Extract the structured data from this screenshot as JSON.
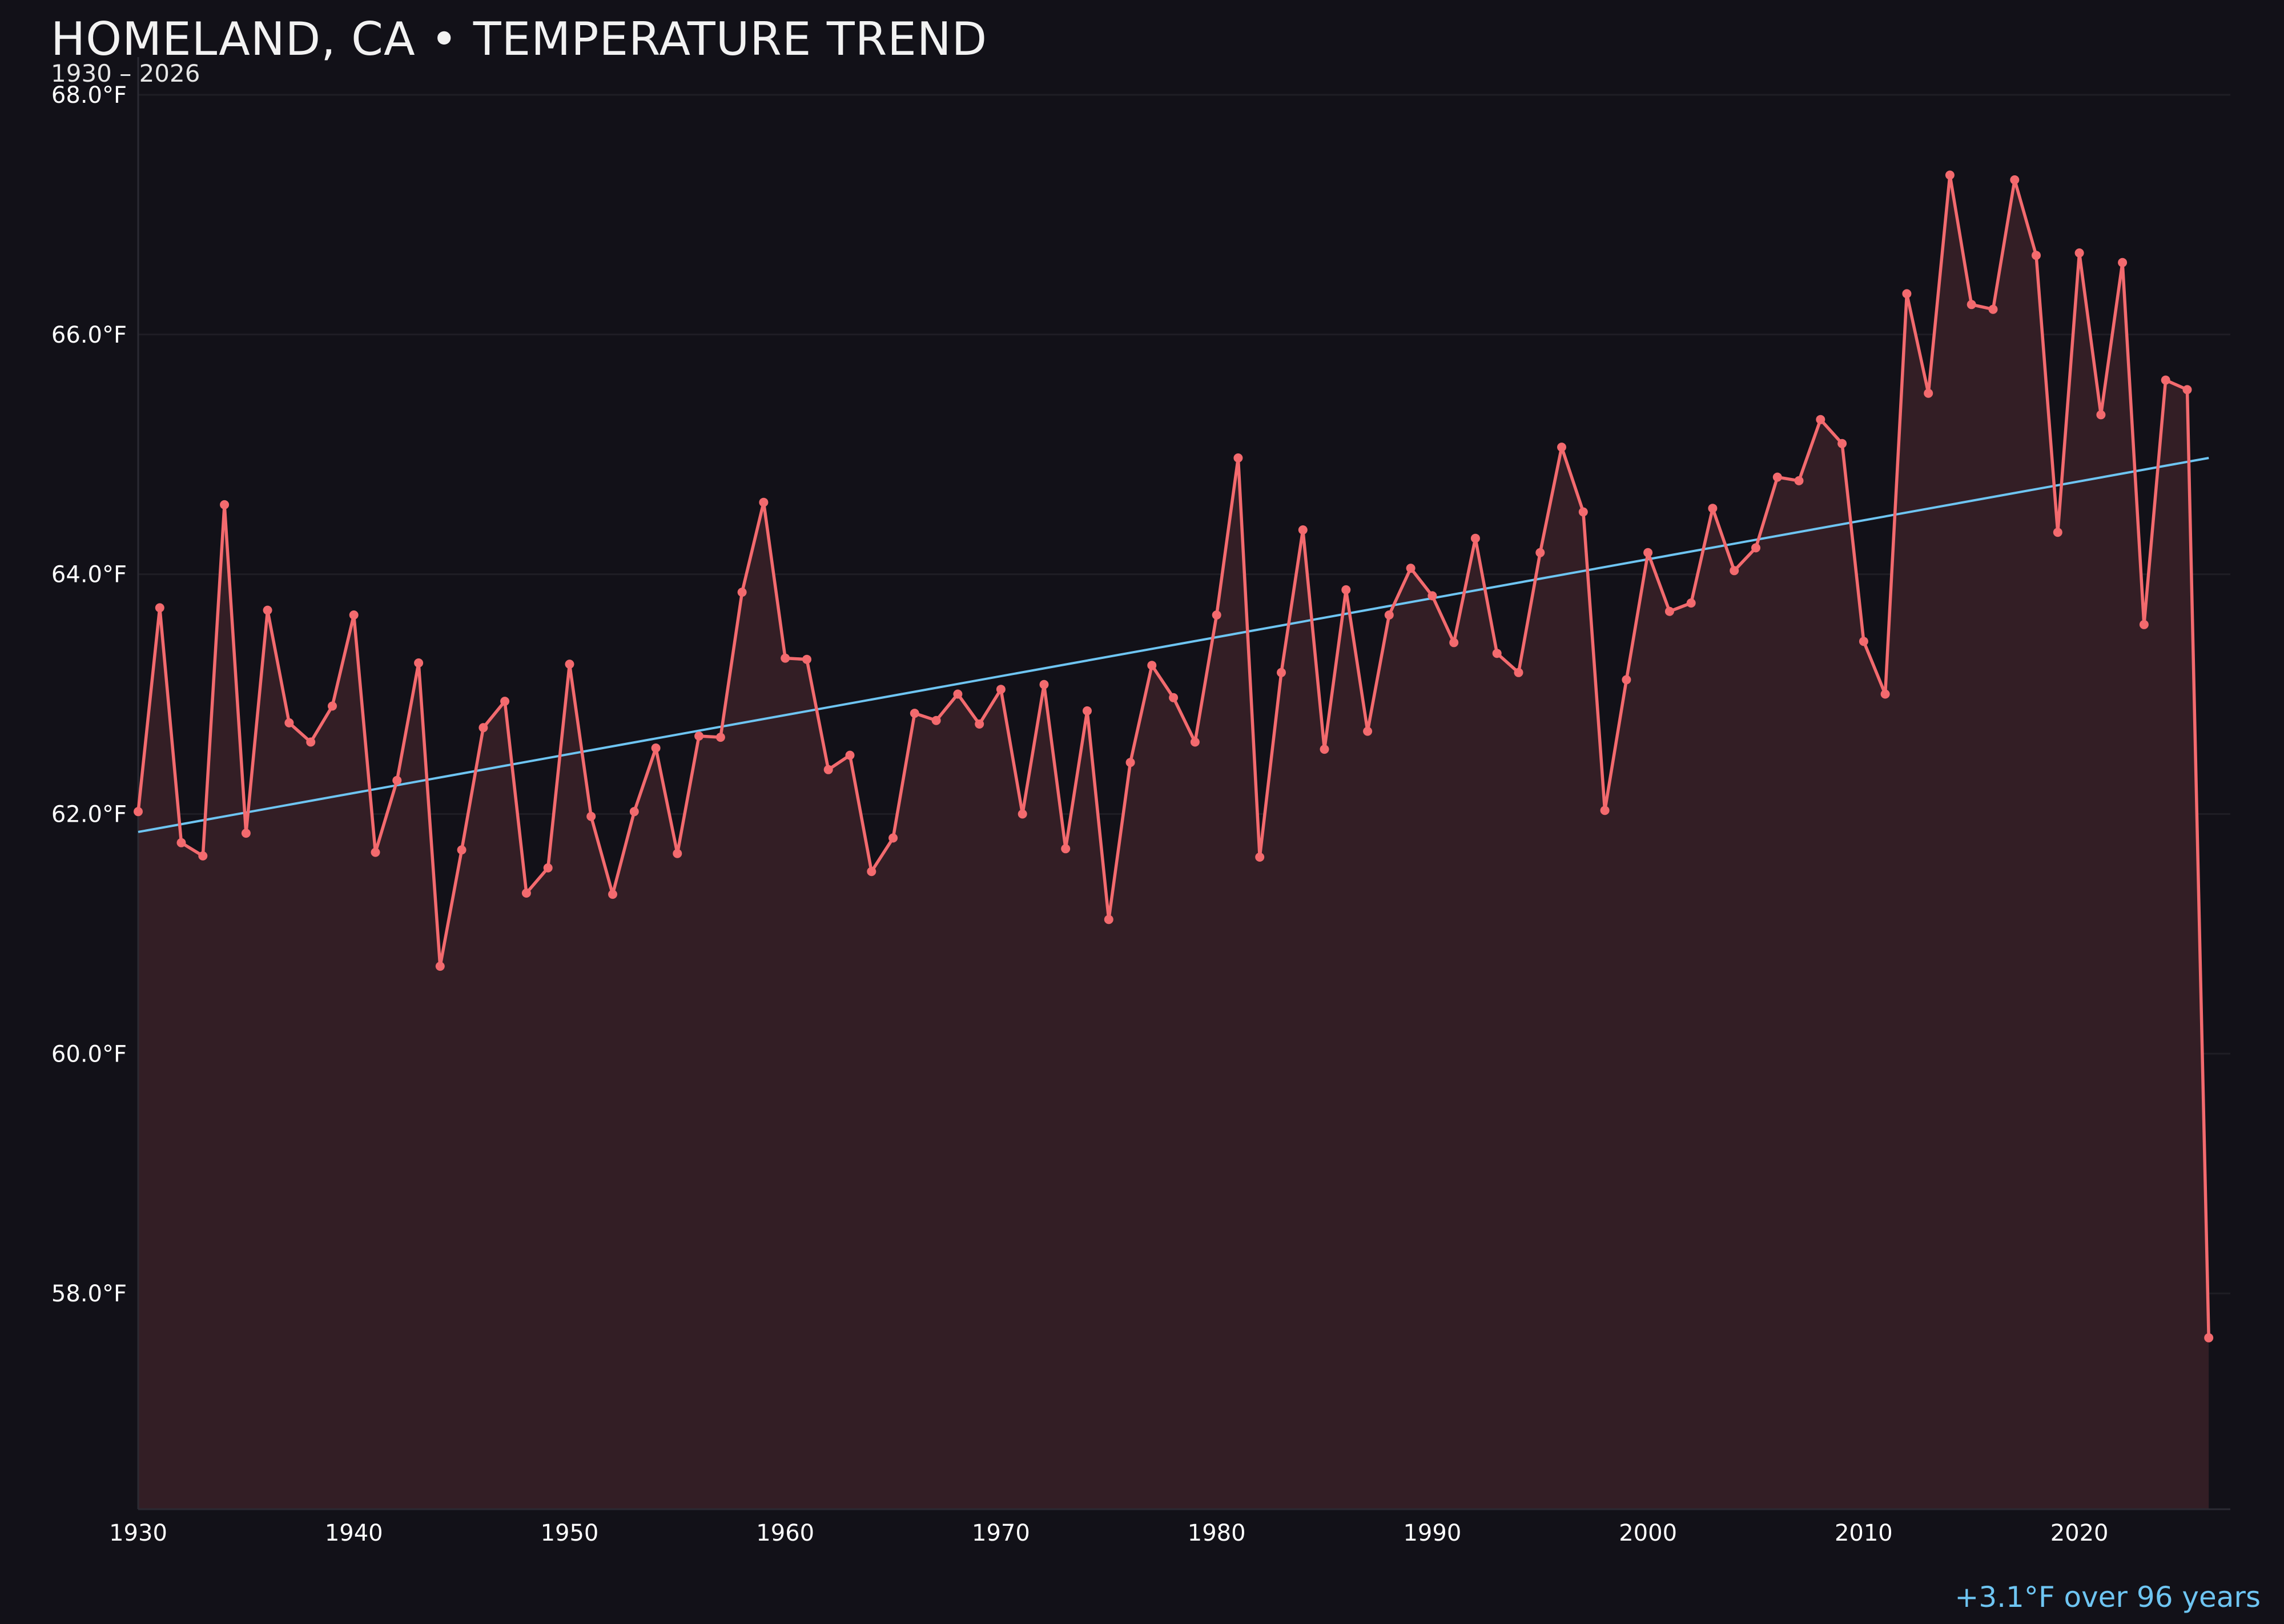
{
  "header": {
    "title": "HOMELAND, CA • TEMPERATURE TREND",
    "subtitle": "1930 – 2026"
  },
  "footnote": "+3.1°F over 96 years",
  "colors": {
    "background": "#121118",
    "series": "#f36a6e",
    "fill": "#331e25",
    "trend": "#6ec5f2",
    "grid": "#1f1e25",
    "text": "#ffffff"
  },
  "chart_data": {
    "type": "line",
    "title": "HOMELAND, CA • TEMPERATURE TREND",
    "subtitle": "1930 – 2026",
    "xlabel": "",
    "ylabel": "",
    "xlim": [
      1930,
      2027
    ],
    "ylim": [
      56.2,
      68.6
    ],
    "y_ticks": [
      58,
      60,
      62,
      64,
      66,
      68
    ],
    "y_tick_labels": [
      "58.0°F",
      "60.0°F",
      "62.0°F",
      "64.0°F",
      "66.0°F",
      "68.0°F"
    ],
    "x_ticks": [
      1930,
      1940,
      1950,
      1960,
      1970,
      1980,
      1990,
      2000,
      2010,
      2020
    ],
    "x_tick_labels": [
      "1930",
      "1940",
      "1950",
      "1960",
      "1970",
      "1980",
      "1990",
      "2000",
      "2010",
      "2020"
    ],
    "grid": "horizontal",
    "series": [
      {
        "x": [
          1930,
          1931,
          1932,
          1933,
          1934,
          1935,
          1936,
          1937,
          1938,
          1939,
          1940,
          1941,
          1942,
          1943,
          1944,
          1945,
          1946,
          1947,
          1948,
          1949,
          1950,
          1951,
          1952,
          1953,
          1954,
          1955,
          1956,
          1957,
          1958,
          1959,
          1960,
          1961,
          1962,
          1963,
          1964,
          1965,
          1966,
          1967,
          1968,
          1969,
          1970,
          1971,
          1972,
          1973,
          1974,
          1975,
          1976,
          1977,
          1978,
          1979,
          1980,
          1981,
          1982,
          1983,
          1984,
          1985,
          1986,
          1987,
          1988,
          1989,
          1990,
          1991,
          1992,
          1993,
          1994,
          1995,
          1996,
          1997,
          1998,
          1999,
          2000,
          2001,
          2002,
          2003,
          2004,
          2005,
          2006,
          2007,
          2008,
          2009,
          2010,
          2011,
          2012,
          2013,
          2014,
          2015,
          2016,
          2017,
          2018,
          2019,
          2020,
          2021,
          2022,
          2023,
          2024,
          2025,
          2026
        ],
        "values": [
          62.02,
          63.72,
          61.76,
          61.65,
          64.58,
          61.84,
          63.7,
          62.76,
          62.6,
          62.9,
          63.66,
          61.68,
          62.28,
          63.26,
          60.73,
          61.7,
          62.72,
          62.94,
          61.34,
          61.55,
          63.25,
          61.98,
          61.33,
          62.02,
          62.55,
          61.67,
          62.65,
          62.64,
          63.85,
          64.6,
          63.3,
          63.29,
          62.37,
          62.49,
          61.52,
          61.8,
          62.84,
          62.78,
          63.0,
          62.75,
          63.04,
          62.0,
          63.08,
          61.71,
          62.86,
          61.12,
          62.43,
          63.24,
          62.97,
          62.6,
          63.66,
          64.97,
          61.64,
          63.18,
          64.37,
          62.54,
          63.87,
          62.69,
          63.66,
          64.05,
          63.82,
          63.43,
          64.3,
          63.34,
          63.18,
          64.18,
          65.06,
          64.52,
          62.03,
          63.12,
          64.18,
          63.69,
          63.76,
          64.55,
          64.03,
          64.22,
          64.81,
          64.78,
          65.29,
          65.09,
          63.44,
          63.0,
          66.34,
          65.51,
          67.33,
          66.25,
          66.21,
          67.29,
          66.66,
          64.35,
          66.68,
          65.33,
          66.6,
          63.58,
          65.62,
          65.54,
          57.63
        ]
      }
    ],
    "trend": {
      "x": [
        1930,
        2026
      ],
      "values": [
        61.85,
        64.97
      ]
    }
  }
}
